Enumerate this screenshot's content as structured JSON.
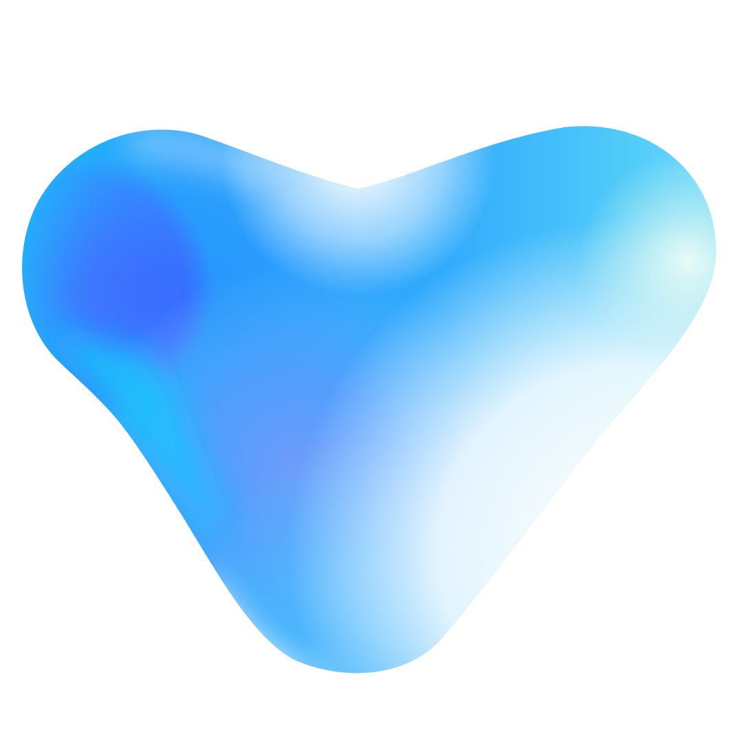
{
  "artwork": {
    "shape": "gradient-blob",
    "background_color": "#ffffff",
    "colors": {
      "cyan": "#17c4fb",
      "blue": "#3f4dff",
      "royal_blue": "#4f7cff",
      "magenta": "#f35cf8",
      "lavender": "#c9b4ff",
      "mint": "#d9f5ef",
      "white": "#ffffff"
    }
  }
}
